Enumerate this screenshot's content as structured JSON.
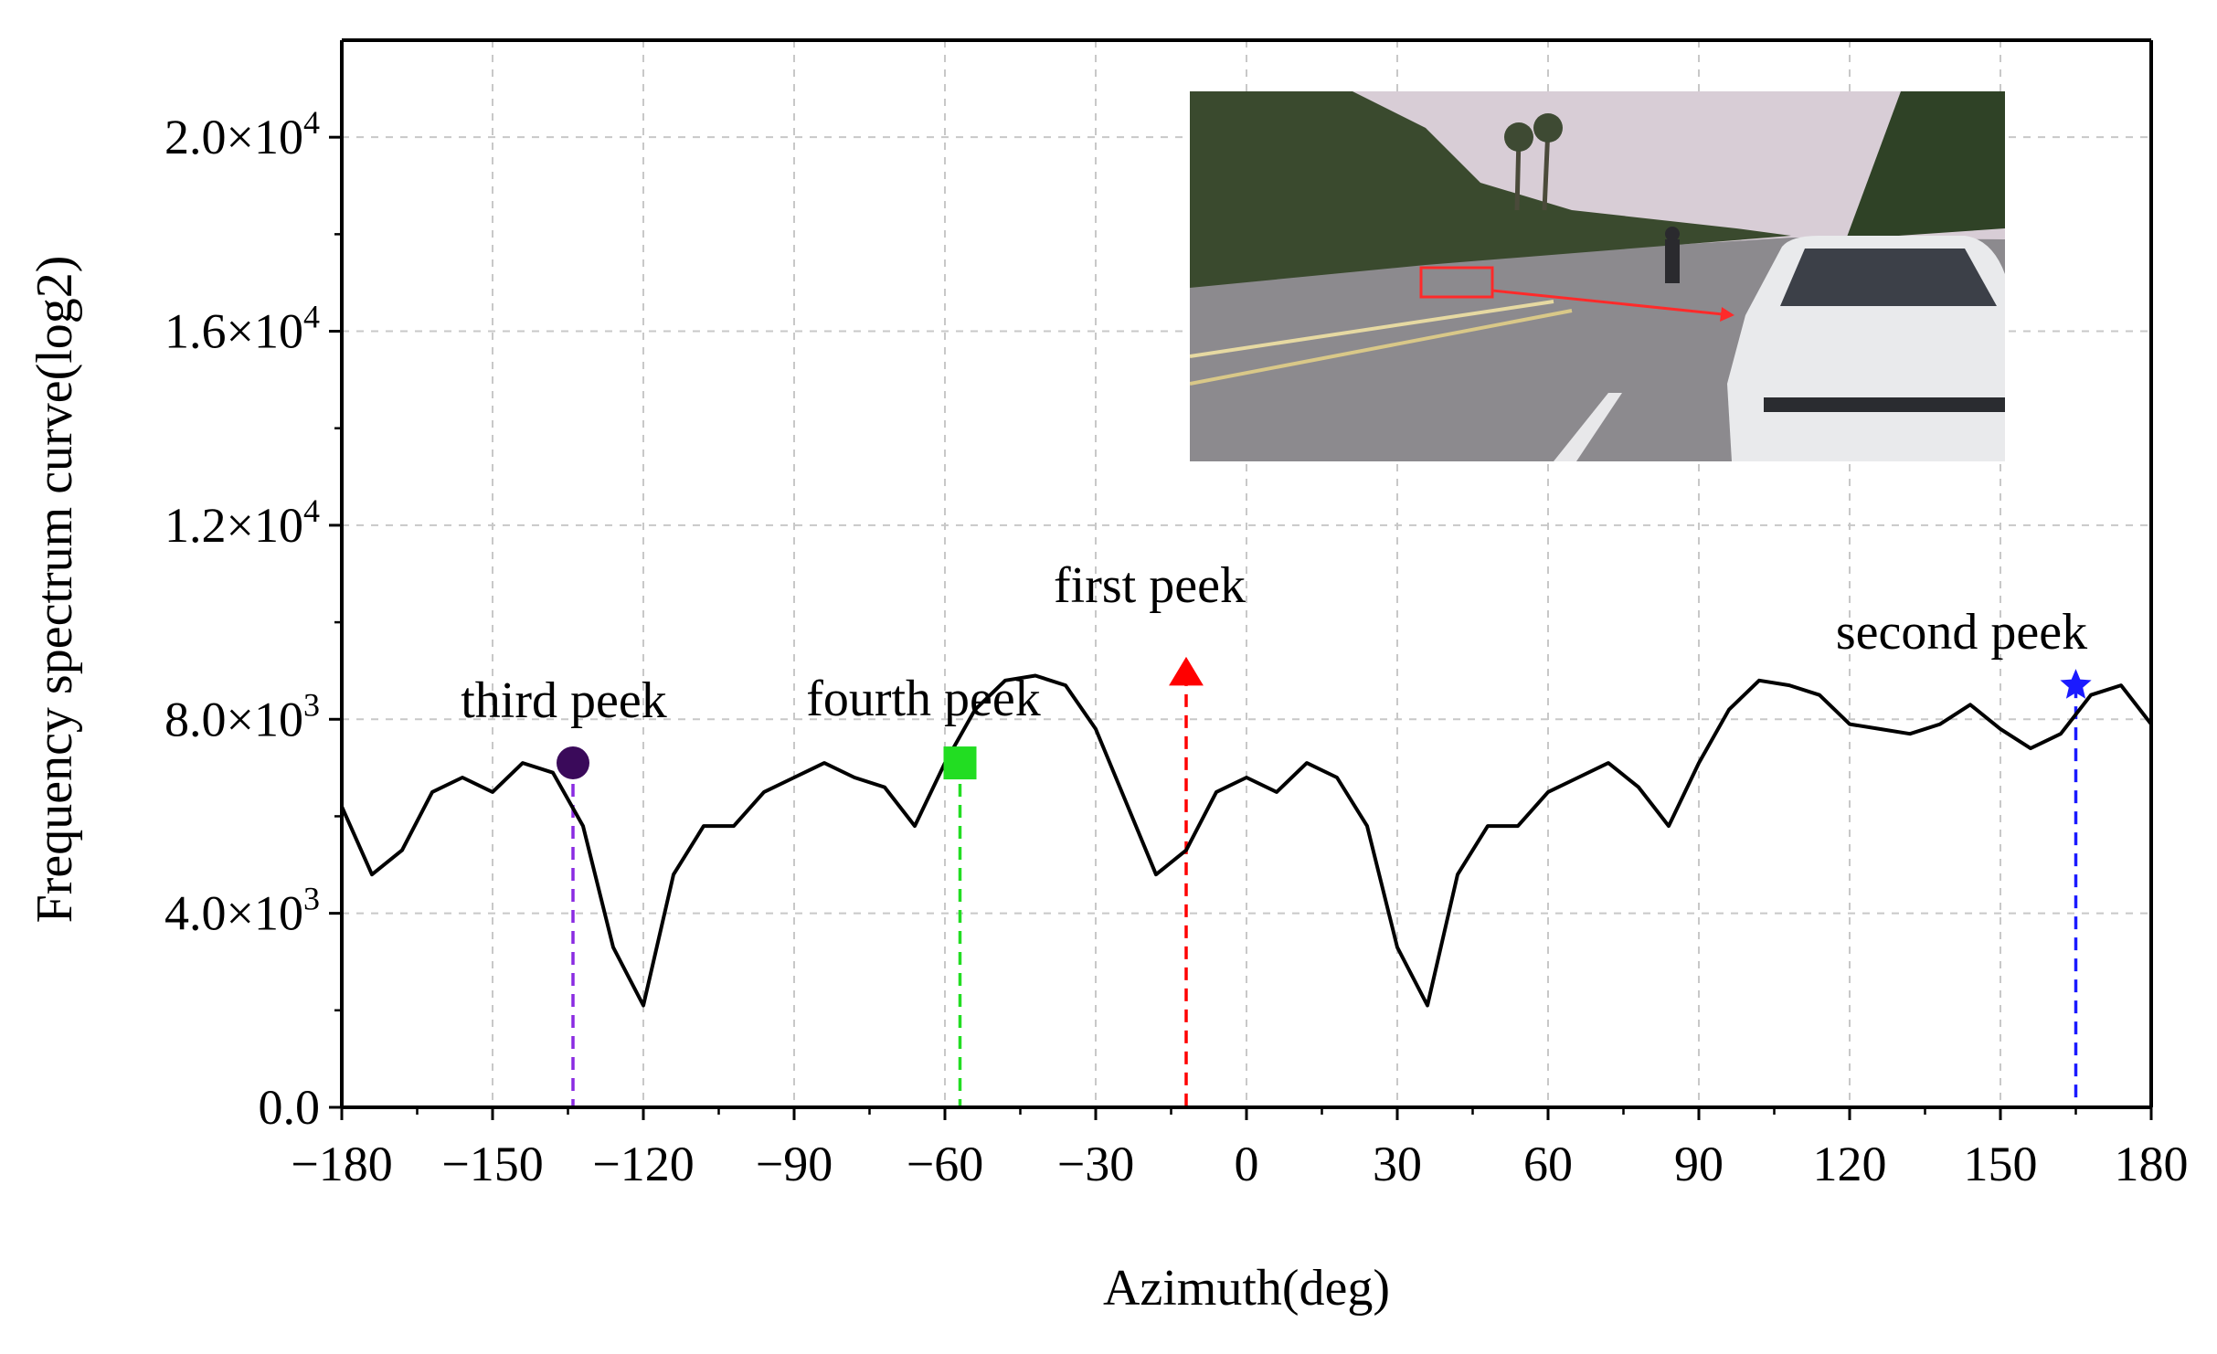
{
  "chart_data": {
    "type": "line",
    "xlabel": "Azimuth(deg)",
    "ylabel": "Frequency spectrum curve(log2)",
    "xlim": [
      -180,
      180
    ],
    "ylim": [
      0,
      22000
    ],
    "grid": true,
    "x_ticks": [
      -180,
      -150,
      -120,
      -90,
      -60,
      -30,
      0,
      30,
      60,
      90,
      120,
      150,
      180
    ],
    "x_tick_labels": [
      "−180",
      "−150",
      "−120",
      "−90",
      "−60",
      "−30",
      "0",
      "30",
      "60",
      "90",
      "120",
      "150",
      "180"
    ],
    "y_ticks": [
      0,
      4000,
      8000,
      12000,
      16000,
      20000
    ],
    "y_tick_labels": [
      {
        "mant": "0.0",
        "exp": ""
      },
      {
        "mant": "4.0×10",
        "exp": "3"
      },
      {
        "mant": "8.0×10",
        "exp": "3"
      },
      {
        "mant": "1.2×10",
        "exp": "4"
      },
      {
        "mant": "1.6×10",
        "exp": "4"
      },
      {
        "mant": "2.0×10",
        "exp": "4"
      }
    ],
    "line_color": "#000000",
    "x": [
      -180,
      -174,
      -168,
      -162,
      -156,
      -150,
      -144,
      -138,
      -132,
      -126,
      -120,
      -114,
      -108,
      -102,
      -96,
      -90,
      -84,
      -78,
      -72,
      -66,
      -60,
      -54,
      -48,
      -42,
      -36,
      -30,
      -24,
      -18,
      -12,
      -6,
      0,
      6,
      12,
      18,
      24,
      30,
      36,
      42,
      48,
      54,
      60,
      66,
      72,
      78,
      84,
      90,
      96,
      102,
      108,
      114,
      120,
      126,
      132,
      138,
      144,
      150,
      156,
      162,
      168,
      174,
      180
    ],
    "y": [
      6200,
      4800,
      5300,
      6500,
      6800,
      6500,
      7100,
      6900,
      5800,
      3300,
      2100,
      4800,
      5800,
      5800,
      6500,
      6800,
      7100,
      6800,
      6600,
      5800,
      7100,
      8200,
      8800,
      8900,
      8700,
      7800,
      6300,
      4800,
      5300,
      6500,
      6800,
      6500,
      7100,
      6800,
      5800,
      3300,
      2100,
      4800,
      5800,
      5800,
      6500,
      6800,
      7100,
      6600,
      5800,
      7100,
      8200,
      8800,
      8700,
      8500,
      7900,
      7800,
      7700,
      7900,
      8300,
      7800,
      7400,
      7700,
      8500,
      8700,
      7900
    ],
    "peaks": [
      {
        "label": "first peek",
        "x": -12,
        "y": 8950,
        "color": "#ff0000",
        "marker": "triangle"
      },
      {
        "label": "second peek",
        "x": 165,
        "y": 8700,
        "color": "#1a1aff",
        "marker": "star"
      },
      {
        "label": "third peek",
        "x": -134,
        "y": 7100,
        "color": "#3a0a5a",
        "marker": "circle",
        "line_color": "#8a2be2"
      },
      {
        "label": "fourth peek",
        "x": -57,
        "y": 7100,
        "color": "#22dd22",
        "marker": "square"
      }
    ]
  },
  "inset": {
    "sky_color": "#d8cdd6",
    "road_color": "#8c8a8e",
    "tree_color": "#3a4a2e",
    "car_color": "#e9eaec",
    "highlight_color": "#ff2a2a"
  }
}
